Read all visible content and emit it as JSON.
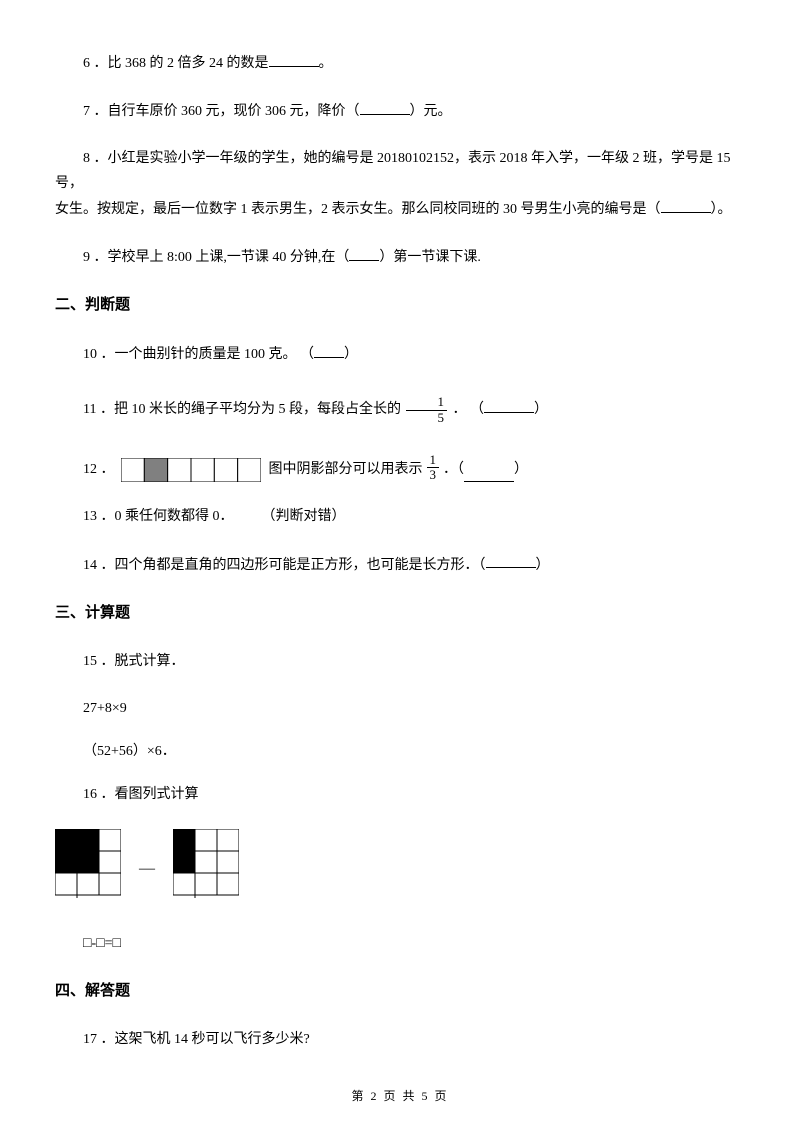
{
  "questions": {
    "q6": "6 ．比 368 的 2 倍多 24 的数是",
    "q6_end": "。",
    "q7_a": "7 ．自行车原价 360 元，现价 306 元，降价（",
    "q7_b": "）元。",
    "q8_a": "8 ．小红是实验小学一年级的学生，她的编号是 20180102152，表示 2018 年入学，一年级 2 班，学号是 15 号，",
    "q8_b": "女生。按规定，最后一位数字 1 表示男生，2 表示女生。那么同校同班的 30 号男生小亮的编号是（",
    "q8_c": "）。",
    "q9_a": "9 ．学校早上 8:00 上课,一节课 40 分钟,在（",
    "q9_b": "）第一节课下课.",
    "q10_a": "10 ．一个曲别针的质量是 100 克。 （",
    "q10_b": "）",
    "q11_a": "11 ．把 10 米长的绳子平均分为 5 段，每段占全长的",
    "q11_b": "． （",
    "q11_c": "）",
    "q12_a": "12 ．",
    "q12_b": "图中阴影部分可以用表示",
    "q12_c": "．（",
    "q12_d": "）",
    "q13": "13 ．0 乘任何数都得 0．　　　（判断对错）",
    "q14_a": "14 ．四个角都是直角的四边形可能是正方形，也可能是长方形．（",
    "q14_b": "）",
    "q15": "15 ．脱式计算．",
    "q15_sub1": "27+8×9",
    "q15_sub2": "（52+56）×6．",
    "q16": "16 ．看图列式计算",
    "q16_eq": "□-□=□",
    "q17": "17 ．这架飞机 14 秒可以飞行多少米?"
  },
  "sections": {
    "s2": "二、判断题",
    "s3": "三、计算题",
    "s4": "四、解答题"
  },
  "fractions": {
    "f1_num": "1",
    "f1_den": "5",
    "f2_num": "1",
    "f2_den": "3"
  },
  "footer": "第 2 页 共 5 页",
  "diagrams": {
    "rect_q12": {
      "width": 140,
      "height": 24,
      "cells": 6,
      "shaded_index": 1,
      "shade_color": "#808080",
      "border_color": "#000000",
      "bg_color": "#ffffff"
    },
    "grid_left": {
      "size": 3,
      "cell": 22,
      "shaded": [
        [
          0,
          0
        ],
        [
          0,
          1
        ],
        [
          1,
          0
        ],
        [
          1,
          1
        ]
      ],
      "shade_color": "#000000",
      "border_color": "#000000"
    },
    "grid_right": {
      "size": 3,
      "cell": 22,
      "shaded": [
        [
          0,
          0
        ],
        [
          1,
          0
        ]
      ],
      "shade_color": "#000000",
      "border_color": "#000000"
    }
  }
}
